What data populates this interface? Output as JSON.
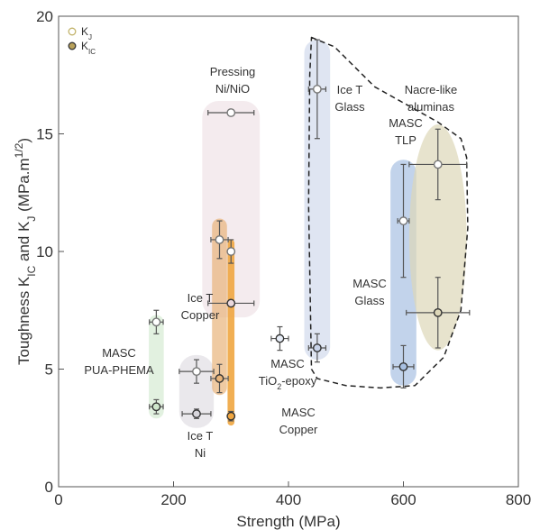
{
  "chart_data": {
    "type": "scatter",
    "xlabel": "Strength (MPa)",
    "ylabel_parts": [
      "Toughness K",
      "IC",
      " and K",
      "J",
      " (MPa.m",
      "1/2",
      ")"
    ],
    "xlim": [
      0,
      800
    ],
    "ylim": [
      0,
      20
    ],
    "x_ticks": [
      0,
      200,
      400,
      600,
      800
    ],
    "y_ticks": [
      0,
      5,
      10,
      15,
      20
    ],
    "grid": false,
    "legend_position": "top-left",
    "legend": [
      {
        "marker": "open",
        "label": "K",
        "sub": "J"
      },
      {
        "marker": "filled",
        "label": "K",
        "sub": "IC"
      }
    ],
    "groups": [
      {
        "color": "#cfe7cc",
        "points": [
          {
            "x": 170,
            "y": 7.0,
            "xerr": 12,
            "yerr": 0.5,
            "type": "J"
          },
          {
            "x": 170,
            "y": 3.4,
            "xerr": 12,
            "yerr": 0.3,
            "type": "IC"
          }
        ]
      },
      {
        "color": "#d8d6dc",
        "points": [
          {
            "x": 240,
            "y": 4.9,
            "xerr": 30,
            "yerr": 0.5,
            "type": "J"
          },
          {
            "x": 240,
            "y": 3.1,
            "xerr": 25,
            "yerr": 0.2,
            "type": "IC"
          }
        ]
      },
      {
        "color": "#ead8dd",
        "points": [
          {
            "x": 300,
            "y": 15.9,
            "xerr": 40,
            "yerr": 0.0,
            "type": "J"
          },
          {
            "x": 300,
            "y": 7.8,
            "xerr": 40,
            "yerr": 0.0,
            "type": "IC"
          }
        ]
      },
      {
        "color": "#e8b47a",
        "points": [
          {
            "x": 280,
            "y": 10.5,
            "xerr": 15,
            "yerr": 0.8,
            "type": "J"
          },
          {
            "x": 300,
            "y": 10.0,
            "xerr": 5,
            "yerr": 0.5,
            "type": "J"
          },
          {
            "x": 280,
            "y": 4.6,
            "xerr": 15,
            "yerr": 0.6,
            "type": "IC"
          }
        ]
      },
      {
        "color": "#f0a640",
        "points": [
          {
            "x": 300,
            "y": 3.0,
            "xerr": 3,
            "yerr": 0.2,
            "type": "IC"
          }
        ]
      },
      {
        "color": "#ffffff",
        "points": [
          {
            "x": 385,
            "y": 6.3,
            "xerr": 15,
            "yerr": 0.5,
            "type": "IC"
          }
        ]
      },
      {
        "color": "#c9d4ea",
        "points": [
          {
            "x": 450,
            "y": 16.9,
            "xerr": 15,
            "yerr": 2.1,
            "type": "J"
          },
          {
            "x": 450,
            "y": 5.9,
            "xerr": 15,
            "yerr": 0.6,
            "type": "IC"
          }
        ]
      },
      {
        "color": "#a8c0e2",
        "points": [
          {
            "x": 600,
            "y": 11.3,
            "xerr": 10,
            "yerr": 2.4,
            "type": "J"
          },
          {
            "x": 600,
            "y": 5.1,
            "xerr": 18,
            "yerr": 0.9,
            "type": "IC"
          }
        ]
      },
      {
        "color": "#ddd7b8",
        "points": [
          {
            "x": 660,
            "y": 13.7,
            "xerr": 50,
            "yerr": 1.5,
            "type": "J"
          },
          {
            "x": 660,
            "y": 7.4,
            "xerr": 55,
            "yerr": 1.5,
            "type": "IC"
          }
        ]
      }
    ],
    "annotations": [
      {
        "lines": [
          "MASC",
          "PUA-PHEMA"
        ]
      },
      {
        "lines": [
          "Ice T",
          "Ni"
        ]
      },
      {
        "lines": [
          "Pressing",
          "Ni/NiO"
        ]
      },
      {
        "lines": [
          "Ice T",
          "Copper"
        ]
      },
      {
        "lines": [
          "MASC",
          "Copper"
        ]
      },
      {
        "lines": [
          "MASC",
          "TiO2-epoxy"
        ]
      },
      {
        "lines": [
          "Ice T",
          "Glass"
        ]
      },
      {
        "lines": [
          "Nacre-like",
          "aluminas"
        ]
      },
      {
        "lines": [
          "MASC",
          "TLP"
        ]
      },
      {
        "lines": [
          "MASC",
          "Glass"
        ]
      }
    ]
  }
}
